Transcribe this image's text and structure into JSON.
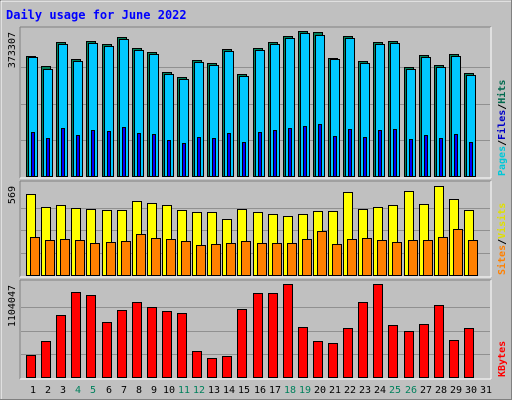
{
  "chart_data": {
    "type": "bar",
    "title": "Daily usage for June 2022",
    "categories": [
      "1",
      "2",
      "3",
      "4",
      "5",
      "6",
      "7",
      "8",
      "9",
      "10",
      "11",
      "12",
      "13",
      "14",
      "15",
      "16",
      "17",
      "18",
      "19",
      "20",
      "21",
      "22",
      "23",
      "24",
      "25",
      "26",
      "27",
      "28",
      "29",
      "30",
      "31"
    ],
    "weekend_days": [
      4,
      5,
      11,
      12,
      18,
      19,
      25,
      26
    ],
    "panels": [
      {
        "id": "hits",
        "ymax_label": "373307",
        "ymax": 373307,
        "side_labels": [
          {
            "text": "Pages",
            "color": "#00c8d8"
          },
          {
            "text": "/",
            "color": "#000000"
          },
          {
            "text": "Files",
            "color": "#0000c8"
          },
          {
            "text": "/",
            "color": "#000000"
          },
          {
            "text": "Hits",
            "color": "#006a4e"
          }
        ],
        "series": [
          {
            "name": "Hits",
            "color": "#00805c",
            "values": [
              310000,
              282000,
              344000,
              302000,
              348000,
              340000,
              357000,
              330000,
              318000,
              267000,
              256000,
              298000,
              292000,
              327000,
              262000,
              329000,
              344000,
              360000,
              373307,
              370000,
              305000,
              361000,
              296000,
              344000,
              348000,
              281000,
              312000,
              286000,
              314000,
              265000
            ]
          },
          {
            "name": "Files",
            "color": "#00c8ff",
            "values": [
              306000,
              276000,
              339000,
              297000,
              343000,
              334000,
              352000,
              325000,
              313000,
              262000,
              251000,
              293000,
              287000,
              322000,
              257000,
              324000,
              339000,
              355000,
              368000,
              364000,
              300000,
              356000,
              291000,
              339000,
              343000,
              276000,
              307000,
              281000,
              309000,
              260000
            ]
          },
          {
            "name": "Pages",
            "color": "#0000ff",
            "values": [
              112000,
              98000,
              123000,
              106000,
              118000,
              115000,
              126000,
              110000,
              108000,
              92000,
              86000,
              101000,
              99000,
              111000,
              88000,
              112000,
              118000,
              124000,
              130000,
              135000,
              102000,
              122000,
              100000,
              118000,
              120000,
              95000,
              106000,
              97000,
              107000,
              87000
            ]
          }
        ]
      },
      {
        "id": "visits",
        "ymax_label": "569",
        "ymax": 569,
        "side_labels": [
          {
            "text": "Sites",
            "color": "#ff8000"
          },
          {
            "text": "/",
            "color": "#000000"
          },
          {
            "text": "Visits",
            "color": "#e0e000"
          }
        ],
        "series": [
          {
            "name": "Visits",
            "color": "#ffff00",
            "values": [
              512,
              431,
              443,
              426,
              416,
              408,
              410,
              470,
              456,
              444,
              409,
              399,
              397,
              355,
              418,
              396,
              385,
              376,
              383,
              403,
              404,
              523,
              416,
              433,
              444,
              531,
              450,
              563,
              483,
              414
            ]
          },
          {
            "name": "Sites",
            "color": "#ff8000",
            "values": [
              242,
              221,
              230,
              220,
              205,
              210,
              212,
              260,
              231,
              225,
              215,
              191,
              195,
              202,
              214,
              202,
              204,
              200,
              226,
              279,
              195,
              227,
              234,
              222,
              210,
              222,
              221,
              238,
              290,
              220
            ]
          }
        ]
      },
      {
        "id": "kbytes",
        "ymax_label": "1104047",
        "ymax": 1104047,
        "side_labels": [
          {
            "text": "KBytes",
            "color": "#ff0000"
          }
        ],
        "series": [
          {
            "name": "KBytes",
            "color": "#ff0000",
            "values": [
              258000,
              424000,
              732000,
              1010000,
              972000,
              648000,
              791000,
              896000,
              830000,
              779000,
              758000,
              308000,
              228000,
              255000,
              808000,
              992000,
              992000,
              1104047,
              598000,
              426000,
              408000,
              587000,
              896000,
              1104047,
              619000,
              549000,
              624000,
              851000,
              443000,
              583000
            ]
          }
        ]
      }
    ]
  }
}
